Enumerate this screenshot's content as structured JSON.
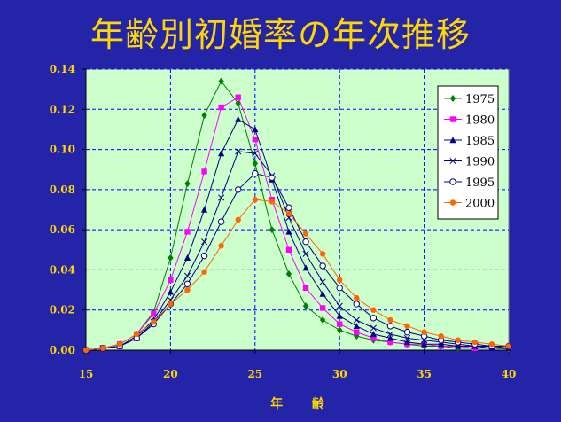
{
  "chart_data": {
    "type": "line",
    "title": "年齢別初婚率の年次推移",
    "xlabel": "年 齢",
    "ylabel": "",
    "xlim": [
      15,
      40
    ],
    "ylim": [
      0,
      0.14
    ],
    "x_ticks": [
      "15",
      "20",
      "25",
      "30",
      "35",
      "40"
    ],
    "y_ticks": [
      "0.00",
      "0.02",
      "0.04",
      "0.06",
      "0.08",
      "0.10",
      "0.12",
      "0.14"
    ],
    "grid": true,
    "legend_position": "top-right",
    "x": [
      15,
      16,
      17,
      18,
      19,
      20,
      21,
      22,
      23,
      24,
      25,
      26,
      27,
      28,
      29,
      30,
      31,
      32,
      33,
      34,
      35,
      36,
      37,
      38,
      39,
      40
    ],
    "series": [
      {
        "name": "1975",
        "color": "#008000",
        "marker": "diamond",
        "values": [
          0,
          0.001,
          0.003,
          0.008,
          0.019,
          0.046,
          0.083,
          0.117,
          0.134,
          0.123,
          0.093,
          0.06,
          0.038,
          0.022,
          0.015,
          0.01,
          0.007,
          0.005,
          0.004,
          0.003,
          0.002,
          0.002,
          0.001,
          0.001,
          0.001,
          0.0005
        ]
      },
      {
        "name": "1980",
        "color": "#ff00ff",
        "marker": "square",
        "values": [
          0,
          0.001,
          0.003,
          0.008,
          0.018,
          0.035,
          0.059,
          0.089,
          0.121,
          0.126,
          0.105,
          0.075,
          0.05,
          0.031,
          0.021,
          0.013,
          0.009,
          0.006,
          0.004,
          0.003,
          0.003,
          0.002,
          0.002,
          0.001,
          0.001,
          0.001
        ]
      },
      {
        "name": "1985",
        "color": "#000080",
        "marker": "triangle",
        "values": [
          0,
          0.001,
          0.002,
          0.007,
          0.015,
          0.029,
          0.046,
          0.07,
          0.098,
          0.115,
          0.11,
          0.085,
          0.059,
          0.041,
          0.028,
          0.017,
          0.012,
          0.008,
          0.006,
          0.004,
          0.003,
          0.003,
          0.002,
          0.002,
          0.001,
          0.001
        ]
      },
      {
        "name": "1990",
        "color": "#000080",
        "marker": "cross",
        "values": [
          0,
          0.001,
          0.002,
          0.006,
          0.014,
          0.025,
          0.037,
          0.054,
          0.076,
          0.099,
          0.098,
          0.087,
          0.066,
          0.048,
          0.034,
          0.022,
          0.015,
          0.011,
          0.008,
          0.006,
          0.005,
          0.004,
          0.003,
          0.002,
          0.002,
          0.001
        ]
      },
      {
        "name": "1995",
        "color": "#000080",
        "marker": "circle",
        "values": [
          0,
          0.001,
          0.002,
          0.006,
          0.013,
          0.023,
          0.033,
          0.047,
          0.064,
          0.08,
          0.088,
          0.086,
          0.071,
          0.054,
          0.042,
          0.031,
          0.023,
          0.016,
          0.012,
          0.009,
          0.007,
          0.005,
          0.004,
          0.003,
          0.002,
          0.002
        ]
      },
      {
        "name": "2000",
        "color": "#ff6600",
        "marker": "dot",
        "values": [
          0,
          0.001,
          0.003,
          0.008,
          0.014,
          0.023,
          0.03,
          0.039,
          0.052,
          0.065,
          0.075,
          0.074,
          0.068,
          0.058,
          0.048,
          0.035,
          0.026,
          0.02,
          0.015,
          0.012,
          0.009,
          0.007,
          0.005,
          0.004,
          0.003,
          0.002
        ]
      }
    ]
  },
  "colors": {
    "background": "#2424a8",
    "plot_area": "#ccffcc",
    "title": "#ffd700",
    "ticks": "#ffd700",
    "grid": "#0000ff"
  }
}
